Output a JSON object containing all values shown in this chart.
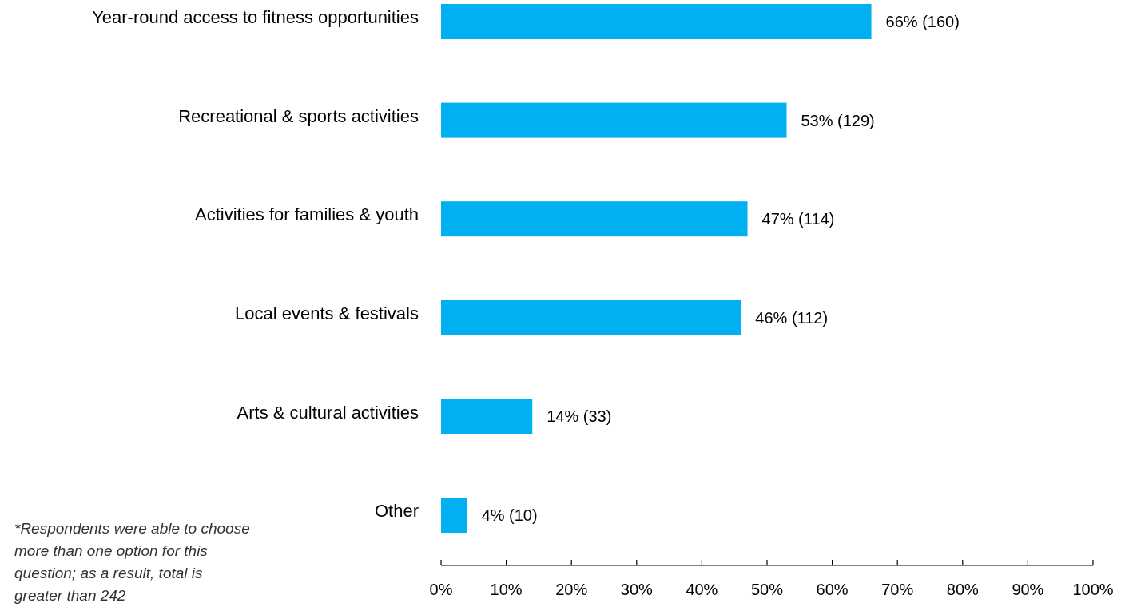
{
  "chart_data": {
    "type": "bar",
    "orientation": "horizontal",
    "categories": [
      "Year-round access to fitness opportunities",
      "Recreational & sports activities",
      "Activities for families & youth",
      "Local events & festivals",
      "Arts & cultural activities",
      "Other"
    ],
    "values": [
      66,
      53,
      47,
      46,
      14,
      4
    ],
    "value_labels": [
      "66% (160)",
      "53% (129)",
      "47% (114)",
      "46% (112)",
      "14% (33)",
      "4% (10)"
    ],
    "color": "#00b0f0",
    "xlim": [
      0,
      100
    ],
    "xticks": [
      {
        "value": 0,
        "label": "0%"
      },
      {
        "value": 10,
        "label": "10%"
      },
      {
        "value": 20,
        "label": "20%"
      },
      {
        "value": 30,
        "label": "30%"
      },
      {
        "value": 40,
        "label": "40%"
      },
      {
        "value": 50,
        "label": "50%"
      },
      {
        "value": 60,
        "label": "60%"
      },
      {
        "value": 70,
        "label": "70%"
      },
      {
        "value": 80,
        "label": "80%"
      },
      {
        "value": 90,
        "label": "90%"
      },
      {
        "value": 100,
        "label": "100%"
      }
    ],
    "grid": false,
    "annotations": [
      "*Respondents were able to choose more than one option for this question; as a result, total is greater than 242"
    ]
  }
}
